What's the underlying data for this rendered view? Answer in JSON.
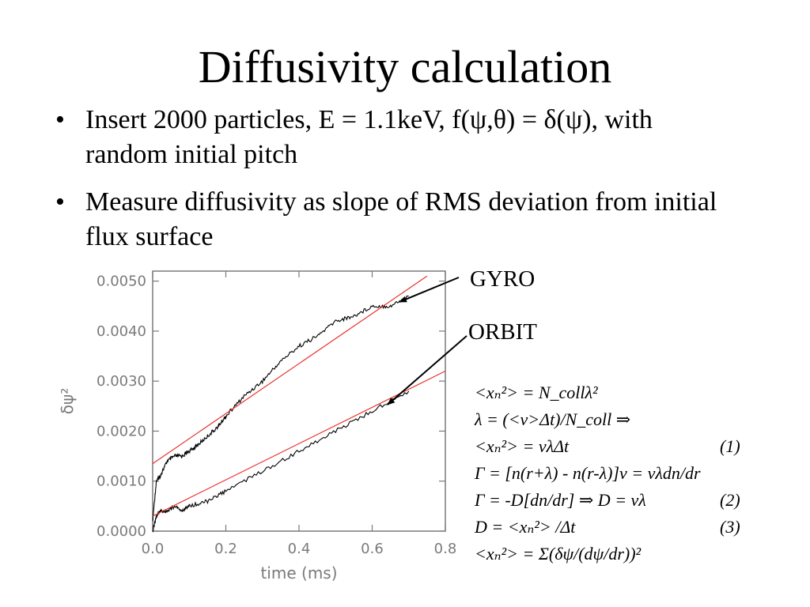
{
  "slide": {
    "title": "Diffusivity calculation",
    "bullets": [
      {
        "text": "Insert 2000 particles, E = 1.1keV, f(ψ,θ) = δ(ψ), with random initial pitch"
      },
      {
        "text": "Measure diffusivity as slope of RMS deviation from initial flux surface"
      }
    ]
  },
  "annotations": {
    "gyro_label": "GYRO",
    "orbit_label": "ORBIT"
  },
  "equations": [
    {
      "text": "<xₙ²> = N_collλ²",
      "number": ""
    },
    {
      "text": "λ = (<v>Δt)/N_coll ⇒",
      "number": ""
    },
    {
      "text": "<xₙ²> = vλΔt",
      "number": "(1)"
    },
    {
      "text": "Γ = [n(r+λ) - n(r-λ)]v = vλdn/dr",
      "number": ""
    },
    {
      "text": "Γ = -D[dn/dr] ⇒ D = vλ",
      "number": "(2)"
    },
    {
      "text": "D = <xₙ²> /Δt",
      "number": "(3)"
    },
    {
      "text": "<xₙ²> = Σ(δψ/(dψ/dr))²",
      "number": ""
    }
  ],
  "chart_data": {
    "type": "line",
    "xlabel": "time (ms)",
    "ylabel": "δψ²",
    "xlim": [
      0.0,
      0.8
    ],
    "ylim": [
      0.0,
      0.0052
    ],
    "x_ticks": [
      "0.0",
      "0.2",
      "0.4",
      "0.6",
      "0.8"
    ],
    "y_ticks": [
      "0.0000",
      "0.0010",
      "0.0020",
      "0.0030",
      "0.0040",
      "0.0050"
    ],
    "colors": {
      "data": "#000000",
      "fit": "#e8322c",
      "axis": "#7a7a7a"
    },
    "series": [
      {
        "name": "GYRO",
        "style": "data",
        "x": [
          0.0,
          0.01,
          0.02,
          0.04,
          0.06,
          0.08,
          0.1,
          0.12,
          0.15,
          0.18,
          0.2,
          0.25,
          0.3,
          0.35,
          0.4,
          0.45,
          0.5,
          0.55,
          0.6,
          0.65,
          0.7
        ],
        "y": [
          0.0002,
          0.001,
          0.0011,
          0.0014,
          0.0015,
          0.0015,
          0.0016,
          0.0017,
          0.0019,
          0.0021,
          0.0023,
          0.0027,
          0.003,
          0.0034,
          0.0037,
          0.0039,
          0.0042,
          0.0043,
          0.0045,
          0.0045,
          0.0047
        ]
      },
      {
        "name": "GYRO fit",
        "style": "fit",
        "x": [
          0.0,
          0.75
        ],
        "y": [
          0.00135,
          0.0051
        ]
      },
      {
        "name": "ORBIT",
        "style": "data",
        "x": [
          0.0,
          0.01,
          0.02,
          0.04,
          0.06,
          0.08,
          0.1,
          0.15,
          0.2,
          0.3,
          0.4,
          0.5,
          0.6,
          0.7
        ],
        "y": [
          0.0,
          0.0003,
          0.0004,
          0.0004,
          0.0005,
          0.0004,
          0.0005,
          0.0006,
          0.0008,
          0.0012,
          0.0016,
          0.002,
          0.0024,
          0.0028
        ]
      },
      {
        "name": "ORBIT fit",
        "style": "fit",
        "x": [
          0.0,
          0.8
        ],
        "y": [
          0.0003,
          0.0032
        ]
      }
    ]
  }
}
